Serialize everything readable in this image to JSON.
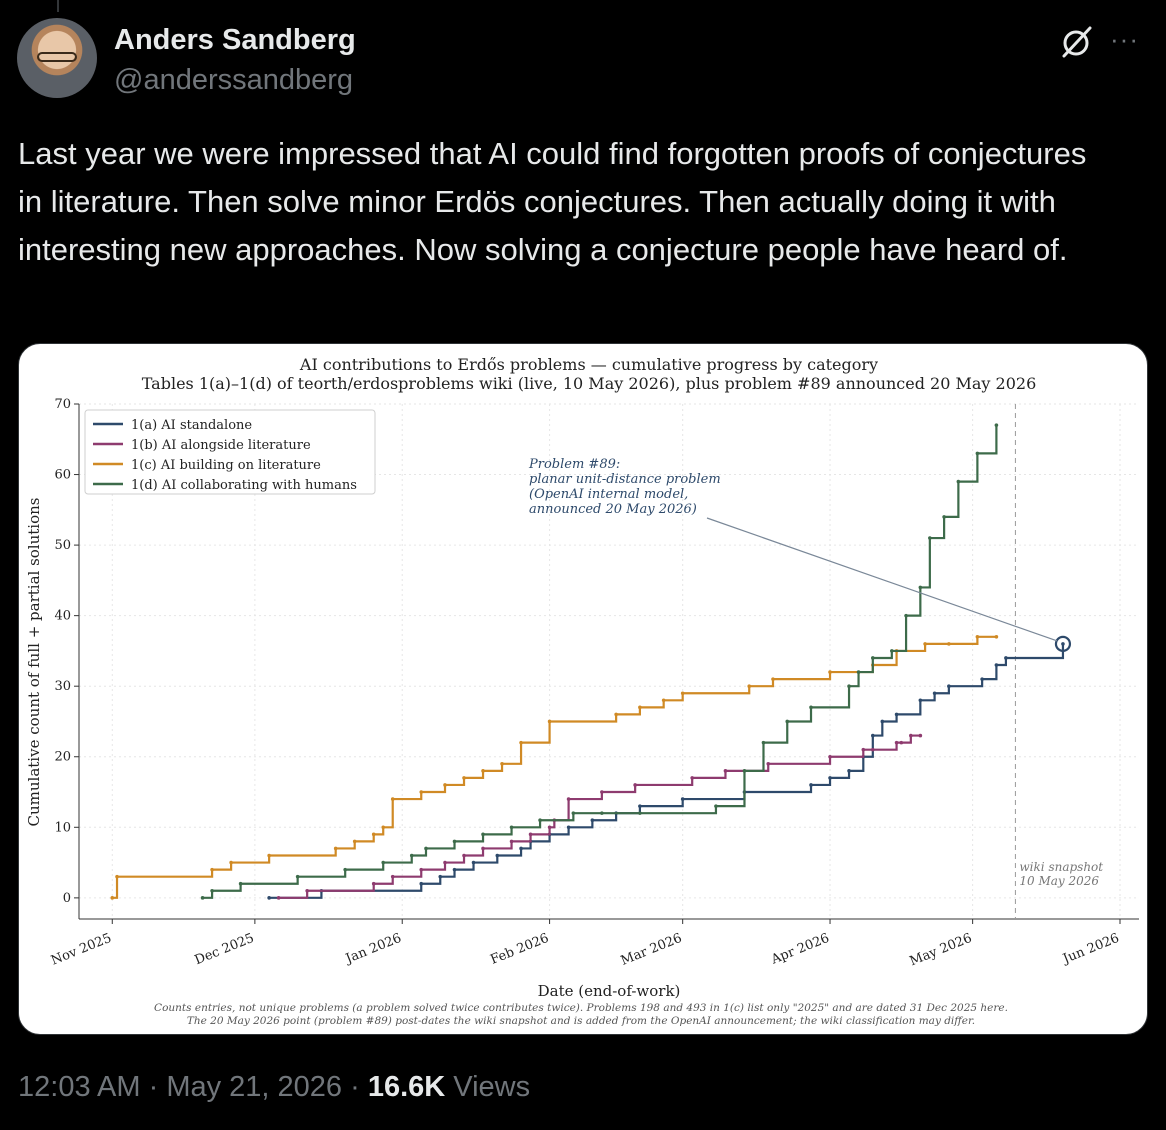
{
  "author": {
    "display_name": "Anders Sandberg",
    "handle": "@anderssandberg",
    "avatar_icon": "profile-photo"
  },
  "icons": {
    "grok": "grok-slash-icon",
    "more": "more-dots-icon"
  },
  "tweet": {
    "text": "Last year we were impressed that AI could find forgotten proofs of conjectures in literature. Then solve minor Erdös conjectures. Then actually doing it with interesting new approaches. Now solving a conjecture people have heard of."
  },
  "meta": {
    "time": "12:03 AM",
    "date": "May 21, 2026",
    "views_count": "16.6K",
    "views_label": "Views"
  },
  "chart_data": {
    "type": "line",
    "step": true,
    "title": "AI contributions to Erdős problems — cumulative progress by category",
    "subtitle": "Tables 1(a)–1(d) of teorth/erdosproblems wiki (live, 10 May 2026), plus problem #89 announced 20 May 2026",
    "xlabel": "Date (end-of-work)",
    "ylabel": "Cumulative count of full + partial solutions",
    "ylim": [
      -3,
      70
    ],
    "yticks": [
      0,
      10,
      20,
      30,
      40,
      50,
      60,
      70
    ],
    "xlim": [
      "2025-10-25",
      "2026-06-05"
    ],
    "xticks": [
      "2025-11-01",
      "2025-12-01",
      "2026-01-01",
      "2026-02-01",
      "2026-03-01",
      "2026-04-01",
      "2026-05-01",
      "2026-06-01"
    ],
    "xtick_labels": [
      "Nov 2025",
      "Dec 2025",
      "Jan 2026",
      "Feb 2026",
      "Mar 2026",
      "Apr 2026",
      "May 2026",
      "Jun 2026"
    ],
    "grid": true,
    "legend": "top-left",
    "series": [
      {
        "name": "1(a) AI standalone",
        "color": "#2e4a6b",
        "x": [
          "2025-12-04",
          "2025-12-15",
          "2026-01-05",
          "2026-01-09",
          "2026-01-12",
          "2026-01-16",
          "2026-01-21",
          "2026-01-26",
          "2026-01-28",
          "2026-02-01",
          "2026-02-05",
          "2026-02-10",
          "2026-02-15",
          "2026-02-20",
          "2026-03-01",
          "2026-03-14",
          "2026-03-28",
          "2026-04-01",
          "2026-04-05",
          "2026-04-08",
          "2026-04-10",
          "2026-04-12",
          "2026-04-15",
          "2026-04-20",
          "2026-04-23",
          "2026-04-26",
          "2026-05-03",
          "2026-05-06",
          "2026-05-08",
          "2026-05-20"
        ],
        "values": [
          0,
          1,
          2,
          3,
          4,
          5,
          6,
          7,
          8,
          9,
          10,
          11,
          12,
          13,
          14,
          15,
          16,
          17,
          18,
          20,
          23,
          25,
          26,
          28,
          29,
          30,
          31,
          33,
          34,
          36
        ]
      },
      {
        "name": "1(b) AI alongside literature",
        "color": "#8e3b6f",
        "x": [
          "2025-12-06",
          "2025-12-12",
          "2025-12-26",
          "2025-12-30",
          "2026-01-05",
          "2026-01-10",
          "2026-01-14",
          "2026-01-18",
          "2026-01-24",
          "2026-01-28",
          "2026-02-01",
          "2026-02-02",
          "2026-02-05",
          "2026-02-12",
          "2026-02-19",
          "2026-03-03",
          "2026-03-10",
          "2026-03-19",
          "2026-04-01",
          "2026-04-08",
          "2026-04-10",
          "2026-04-15",
          "2026-04-16",
          "2026-04-18",
          "2026-04-20"
        ],
        "values": [
          0,
          1,
          2,
          3,
          4,
          5,
          6,
          7,
          8,
          9,
          10,
          11,
          14,
          15,
          16,
          17,
          18,
          19,
          20,
          21,
          21,
          22,
          22,
          23,
          23
        ]
      },
      {
        "name": "1(c) AI building on literature",
        "color": "#d08a25",
        "x": [
          "2025-11-01",
          "2025-11-02",
          "2025-11-22",
          "2025-11-26",
          "2025-12-04",
          "2025-12-18",
          "2025-12-22",
          "2025-12-26",
          "2025-12-28",
          "2025-12-30",
          "2026-01-05",
          "2026-01-10",
          "2026-01-14",
          "2026-01-18",
          "2026-01-22",
          "2026-01-26",
          "2026-02-01",
          "2026-02-15",
          "2026-02-20",
          "2026-02-25",
          "2026-03-01",
          "2026-03-15",
          "2026-03-20",
          "2026-04-01",
          "2026-04-10",
          "2026-04-15",
          "2026-04-21",
          "2026-04-26",
          "2026-05-02",
          "2026-05-06"
        ],
        "values": [
          0,
          3,
          4,
          5,
          6,
          7,
          8,
          9,
          10,
          14,
          15,
          16,
          17,
          18,
          19,
          22,
          25,
          26,
          27,
          28,
          29,
          30,
          31,
          32,
          33,
          35,
          36,
          36,
          37,
          37
        ]
      },
      {
        "name": "1(d) AI collaborating with humans",
        "color": "#3d6b4a",
        "x": [
          "2025-11-20",
          "2025-11-22",
          "2025-11-28",
          "2025-12-10",
          "2025-12-20",
          "2025-12-28",
          "2026-01-03",
          "2026-01-06",
          "2026-01-12",
          "2026-01-18",
          "2026-01-24",
          "2026-01-30",
          "2026-02-06",
          "2026-02-12",
          "2026-02-20",
          "2026-03-08",
          "2026-03-14",
          "2026-03-18",
          "2026-03-23",
          "2026-03-28",
          "2026-04-05",
          "2026-04-07",
          "2026-04-10",
          "2026-04-14",
          "2026-04-17",
          "2026-04-20",
          "2026-04-22",
          "2026-04-25",
          "2026-04-28",
          "2026-05-02",
          "2026-05-06"
        ],
        "values": [
          0,
          1,
          2,
          3,
          4,
          5,
          6,
          7,
          8,
          9,
          10,
          11,
          12,
          12,
          12,
          13,
          18,
          22,
          25,
          27,
          30,
          32,
          34,
          35,
          40,
          44,
          51,
          54,
          59,
          63,
          67
        ]
      }
    ],
    "annotations": [
      {
        "text_lines": [
          "Problem #89:",
          "planar unit-distance problem",
          "(OpenAI internal model,",
          "announced 20 May 2026)"
        ],
        "color": "#2e4a6b",
        "target": {
          "x": "2026-05-20",
          "y": 36
        }
      },
      {
        "text_lines": [
          "wiki snapshot",
          "10 May 2026"
        ],
        "color": "#777777",
        "vline_x": "2026-05-10"
      }
    ],
    "footnotes": [
      "Counts entries, not unique problems (a problem solved twice contributes twice).  Problems 198 and 493 in 1(c) list only \"2025\" and are dated 31 Dec 2025 here.",
      "The 20 May 2026 point (problem #89) post-dates the wiki snapshot and is added from the OpenAI announcement; the wiki classification may differ."
    ]
  }
}
